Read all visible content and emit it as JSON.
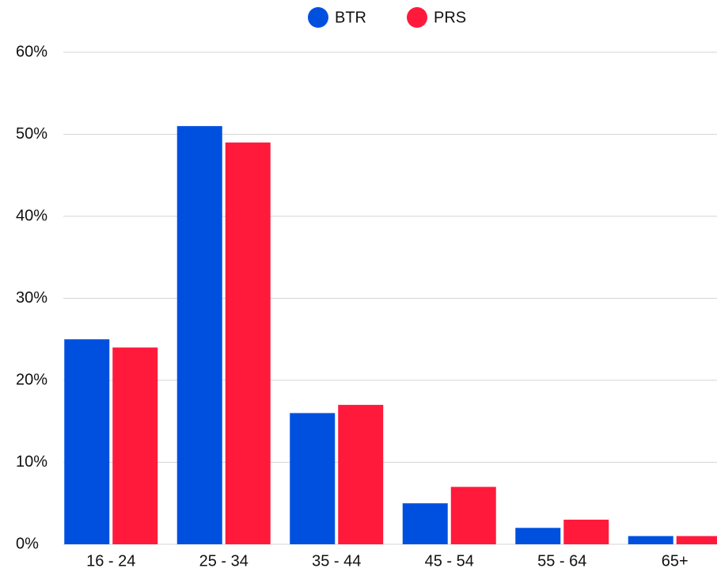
{
  "chart_data": {
    "type": "bar",
    "categories": [
      "16 - 24",
      "25 - 34",
      "35 - 44",
      "45 - 54",
      "55 - 64",
      "65+"
    ],
    "series": [
      {
        "name": "BTR",
        "color": "#0050e0",
        "values": [
          25,
          51,
          16,
          5,
          2,
          1
        ]
      },
      {
        "name": "PRS",
        "color": "#ff1a3c",
        "values": [
          24,
          49,
          17,
          7,
          3,
          1
        ]
      }
    ],
    "ylim": [
      0,
      60
    ],
    "yticks": [
      {
        "value": 0,
        "label": "0%"
      },
      {
        "value": 10,
        "label": "10%"
      },
      {
        "value": 20,
        "label": "20%"
      },
      {
        "value": 30,
        "label": "30%"
      },
      {
        "value": 40,
        "label": "40%"
      },
      {
        "value": 50,
        "label": "50%"
      },
      {
        "value": 60,
        "label": "60%"
      }
    ],
    "grid": true,
    "legend": "top"
  }
}
